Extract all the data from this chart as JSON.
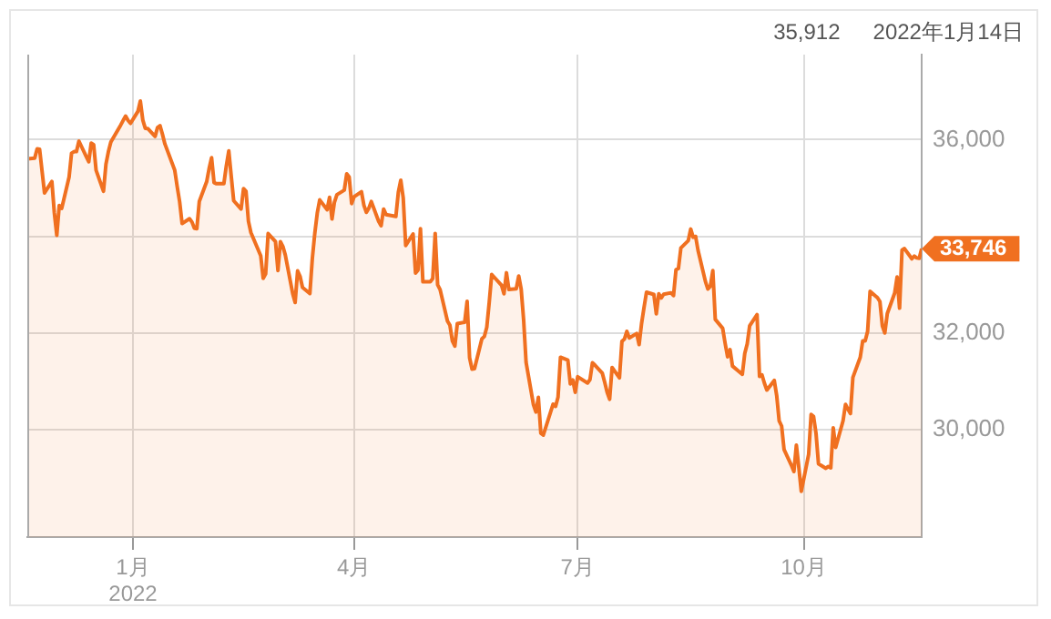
{
  "chart_data": {
    "type": "area",
    "x": [
      "2021-11-19",
      "2021-11-22",
      "2021-11-23",
      "2021-11-24",
      "2021-11-26",
      "2021-11-29",
      "2021-11-30",
      "2021-12-01",
      "2021-12-02",
      "2021-12-03",
      "2021-12-06",
      "2021-12-07",
      "2021-12-08",
      "2021-12-09",
      "2021-12-10",
      "2021-12-13",
      "2021-12-14",
      "2021-12-15",
      "2021-12-16",
      "2021-12-17",
      "2021-12-20",
      "2021-12-21",
      "2021-12-22",
      "2021-12-23",
      "2021-12-27",
      "2021-12-28",
      "2021-12-29",
      "2021-12-30",
      "2021-12-31",
      "2022-01-03",
      "2022-01-04",
      "2022-01-05",
      "2022-01-06",
      "2022-01-07",
      "2022-01-10",
      "2022-01-11",
      "2022-01-12",
      "2022-01-13",
      "2022-01-14",
      "2022-01-18",
      "2022-01-19",
      "2022-01-20",
      "2022-01-21",
      "2022-01-24",
      "2022-01-25",
      "2022-01-26",
      "2022-01-27",
      "2022-01-28",
      "2022-01-31",
      "2022-02-01",
      "2022-02-02",
      "2022-02-03",
      "2022-02-04",
      "2022-02-07",
      "2022-02-08",
      "2022-02-09",
      "2022-02-10",
      "2022-02-11",
      "2022-02-14",
      "2022-02-15",
      "2022-02-16",
      "2022-02-17",
      "2022-02-18",
      "2022-02-22",
      "2022-02-23",
      "2022-02-24",
      "2022-02-25",
      "2022-02-28",
      "2022-03-01",
      "2022-03-02",
      "2022-03-03",
      "2022-03-04",
      "2022-03-07",
      "2022-03-08",
      "2022-03-09",
      "2022-03-10",
      "2022-03-11",
      "2022-03-14",
      "2022-03-15",
      "2022-03-16",
      "2022-03-17",
      "2022-03-18",
      "2022-03-21",
      "2022-03-22",
      "2022-03-23",
      "2022-03-24",
      "2022-03-25",
      "2022-03-28",
      "2022-03-29",
      "2022-03-30",
      "2022-03-31",
      "2022-04-01",
      "2022-04-04",
      "2022-04-05",
      "2022-04-06",
      "2022-04-07",
      "2022-04-08",
      "2022-04-11",
      "2022-04-12",
      "2022-04-13",
      "2022-04-14",
      "2022-04-18",
      "2022-04-19",
      "2022-04-20",
      "2022-04-21",
      "2022-04-22",
      "2022-04-25",
      "2022-04-26",
      "2022-04-27",
      "2022-04-28",
      "2022-04-29",
      "2022-05-02",
      "2022-05-03",
      "2022-05-04",
      "2022-05-05",
      "2022-05-06",
      "2022-05-09",
      "2022-05-10",
      "2022-05-11",
      "2022-05-12",
      "2022-05-13",
      "2022-05-16",
      "2022-05-17",
      "2022-05-18",
      "2022-05-19",
      "2022-05-20",
      "2022-05-23",
      "2022-05-24",
      "2022-05-25",
      "2022-05-26",
      "2022-05-27",
      "2022-05-31",
      "2022-06-01",
      "2022-06-02",
      "2022-06-03",
      "2022-06-06",
      "2022-06-07",
      "2022-06-08",
      "2022-06-09",
      "2022-06-10",
      "2022-06-13",
      "2022-06-14",
      "2022-06-15",
      "2022-06-16",
      "2022-06-17",
      "2022-06-21",
      "2022-06-22",
      "2022-06-23",
      "2022-06-24",
      "2022-06-27",
      "2022-06-28",
      "2022-06-29",
      "2022-06-30",
      "2022-07-01",
      "2022-07-05",
      "2022-07-06",
      "2022-07-07",
      "2022-07-08",
      "2022-07-11",
      "2022-07-12",
      "2022-07-13",
      "2022-07-14",
      "2022-07-15",
      "2022-07-18",
      "2022-07-19",
      "2022-07-20",
      "2022-07-21",
      "2022-07-22",
      "2022-07-25",
      "2022-07-26",
      "2022-07-27",
      "2022-07-28",
      "2022-07-29",
      "2022-08-01",
      "2022-08-02",
      "2022-08-03",
      "2022-08-04",
      "2022-08-05",
      "2022-08-08",
      "2022-08-09",
      "2022-08-10",
      "2022-08-11",
      "2022-08-12",
      "2022-08-15",
      "2022-08-16",
      "2022-08-17",
      "2022-08-18",
      "2022-08-19",
      "2022-08-22",
      "2022-08-23",
      "2022-08-24",
      "2022-08-25",
      "2022-08-26",
      "2022-08-29",
      "2022-08-30",
      "2022-08-31",
      "2022-09-01",
      "2022-09-02",
      "2022-09-06",
      "2022-09-07",
      "2022-09-08",
      "2022-09-09",
      "2022-09-12",
      "2022-09-13",
      "2022-09-14",
      "2022-09-15",
      "2022-09-16",
      "2022-09-19",
      "2022-09-20",
      "2022-09-21",
      "2022-09-22",
      "2022-09-23",
      "2022-09-26",
      "2022-09-27",
      "2022-09-28",
      "2022-09-29",
      "2022-09-30",
      "2022-10-03",
      "2022-10-04",
      "2022-10-05",
      "2022-10-06",
      "2022-10-07",
      "2022-10-10",
      "2022-10-11",
      "2022-10-12",
      "2022-10-13",
      "2022-10-14",
      "2022-10-17",
      "2022-10-18",
      "2022-10-19",
      "2022-10-20",
      "2022-10-21",
      "2022-10-24",
      "2022-10-25",
      "2022-10-26",
      "2022-10-27",
      "2022-10-28",
      "2022-10-31",
      "2022-11-01",
      "2022-11-02",
      "2022-11-03",
      "2022-11-04",
      "2022-11-07",
      "2022-11-08",
      "2022-11-09",
      "2022-11-10",
      "2022-11-11",
      "2022-11-14",
      "2022-11-15",
      "2022-11-16",
      "2022-11-17",
      "2022-11-18"
    ],
    "series": [
      {
        "color": "#f07020",
        "values": [
          35602,
          35619,
          35813,
          35804,
          34899,
          35136,
          34484,
          34022,
          34640,
          34580,
          35227,
          35719,
          35754,
          35754,
          35971,
          35650,
          35545,
          35928,
          35897,
          35365,
          34932,
          35493,
          35754,
          35950,
          36302,
          36398,
          36488,
          36398,
          36338,
          36585,
          36800,
          36407,
          36236,
          36231,
          36068,
          36252,
          36290,
          36113,
          35912,
          35369,
          35029,
          34715,
          34265,
          34365,
          34298,
          34168,
          34160,
          34725,
          35132,
          35405,
          35629,
          35111,
          35089,
          35091,
          35463,
          35768,
          35241,
          34738,
          34566,
          34989,
          34935,
          34312,
          34079,
          33597,
          33132,
          33224,
          34059,
          33893,
          33294,
          33891,
          33795,
          33615,
          32818,
          32633,
          33286,
          33174,
          32945,
          32818,
          33545,
          34063,
          34481,
          34755,
          34553,
          34808,
          34359,
          34708,
          34862,
          34956,
          35295,
          35228,
          34678,
          34819,
          34922,
          34641,
          34497,
          34584,
          34721,
          34309,
          34221,
          34565,
          34452,
          34412,
          34912,
          35161,
          34793,
          33812,
          34050,
          33241,
          33302,
          34160,
          33061,
          33062,
          33128,
          34061,
          32998,
          32900,
          32246,
          32161,
          31835,
          31730,
          32197,
          32224,
          32655,
          31490,
          31254,
          31262,
          31880,
          31929,
          32120,
          32637,
          33213,
          32990,
          32813,
          33248,
          32900,
          32916,
          33180,
          32910,
          32273,
          31393,
          30517,
          30365,
          30669,
          29927,
          29889,
          30530,
          30484,
          30677,
          31501,
          31439,
          30947,
          31029,
          30775,
          31097,
          30968,
          31037,
          31385,
          31338,
          31173,
          30982,
          30773,
          30630,
          31289,
          31073,
          31828,
          31875,
          32036,
          31899,
          31991,
          31762,
          32198,
          32530,
          32845,
          32798,
          32397,
          32813,
          32727,
          32803,
          32833,
          32775,
          33310,
          33336,
          33761,
          33913,
          34152,
          33981,
          33999,
          33707,
          33064,
          32910,
          32969,
          33292,
          32283,
          32099,
          31791,
          31510,
          31656,
          31318,
          31146,
          31581,
          31775,
          32152,
          32381,
          31105,
          31136,
          30962,
          30822,
          31020,
          30707,
          30184,
          30077,
          29590,
          29261,
          29135,
          29684,
          29226,
          28726,
          29490,
          30317,
          30274,
          29927,
          29297,
          29203,
          29240,
          29211,
          30039,
          29635,
          30186,
          30524,
          30424,
          30334,
          31083,
          31500,
          31837,
          31840,
          32034,
          32862,
          32733,
          32653,
          32148,
          32002,
          32403,
          32827,
          33161,
          32514,
          33716,
          33748,
          33537,
          33593,
          33554,
          33547,
          33746
        ]
      }
    ],
    "xlim": [
      "2021-11-19",
      "2022-11-18"
    ],
    "xticks": [
      {
        "value": "2022-01-01",
        "label": "1月\n2022"
      },
      {
        "value": "2022-04-01",
        "label": "4月"
      },
      {
        "value": "2022-07-01",
        "label": "7月"
      },
      {
        "value": "2022-10-01",
        "label": "10月"
      }
    ],
    "ylim": [
      27780,
      37760
    ],
    "yticks": [
      {
        "value": 30000,
        "label": "30,000"
      },
      {
        "value": 32000,
        "label": "32,000"
      },
      {
        "value": 34000,
        "label": null
      },
      {
        "value": 36000,
        "label": "36,000"
      }
    ],
    "grid": true,
    "legend": false,
    "annotations": [
      "35,912",
      "2022年1月14日",
      {
        "text": "33,746",
        "x": "2022-11-18",
        "y": 33746
      }
    ]
  }
}
